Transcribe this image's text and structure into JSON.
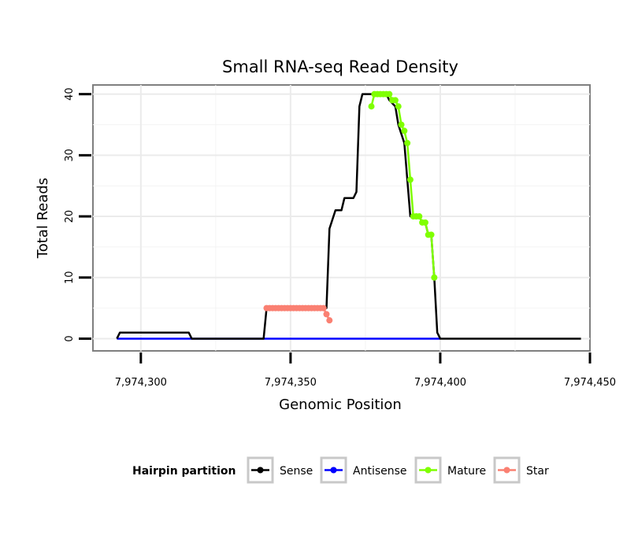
{
  "chart_data": {
    "type": "line",
    "title": "Small RNA-seq Read Density",
    "xlabel": "Genomic Position",
    "ylabel": "Total Reads",
    "xlim": [
      7974284,
      7974450
    ],
    "ylim": [
      -2,
      41.5
    ],
    "x_ticks": [
      7974300,
      7974350,
      7974400,
      7974450
    ],
    "x_tick_labels": [
      "7,974,300",
      "7,974,350",
      "7,974,400",
      "7,974,450"
    ],
    "y_ticks": [
      0,
      10,
      20,
      30,
      40
    ],
    "y_tick_labels": [
      "0",
      "10",
      "20",
      "30",
      "40"
    ],
    "grid": true,
    "legend": {
      "title": "Hairpin partition",
      "position": "bottom",
      "entries": [
        "Sense",
        "Antisense",
        "Mature",
        "Star"
      ]
    },
    "series": [
      {
        "name": "Sense",
        "color": "#000000",
        "markers": false,
        "points": [
          [
            7974292,
            0
          ],
          [
            7974293,
            1
          ],
          [
            7974316,
            1
          ],
          [
            7974317,
            0
          ],
          [
            7974341,
            0
          ],
          [
            7974342,
            5
          ],
          [
            7974362,
            5
          ],
          [
            7974363,
            18
          ],
          [
            7974365,
            21
          ],
          [
            7974367,
            21
          ],
          [
            7974368,
            23
          ],
          [
            7974371,
            23
          ],
          [
            7974372,
            24
          ],
          [
            7974373,
            38
          ],
          [
            7974374,
            40
          ],
          [
            7974382,
            40
          ],
          [
            7974383,
            39
          ],
          [
            7974385,
            38
          ],
          [
            7974386,
            35
          ],
          [
            7974388,
            32
          ],
          [
            7974389,
            26
          ],
          [
            7974390,
            20
          ],
          [
            7974393,
            20
          ],
          [
            7974394,
            19
          ],
          [
            7974395,
            19
          ],
          [
            7974396,
            17
          ],
          [
            7974397,
            17
          ],
          [
            7974398,
            10
          ],
          [
            7974399,
            1
          ],
          [
            7974400,
            0
          ],
          [
            7974447,
            0
          ]
        ]
      },
      {
        "name": "Antisense",
        "color": "#0000ff",
        "markers": false,
        "points": [
          [
            7974292,
            0
          ],
          [
            7974400,
            0
          ]
        ]
      },
      {
        "name": "Mature",
        "color": "#7fff00",
        "markers": true,
        "points": [
          [
            7974377,
            38
          ],
          [
            7974378,
            40
          ],
          [
            7974379,
            40
          ],
          [
            7974380,
            40
          ],
          [
            7974381,
            40
          ],
          [
            7974382,
            40
          ],
          [
            7974383,
            40
          ],
          [
            7974384,
            39
          ],
          [
            7974385,
            39
          ],
          [
            7974386,
            38
          ],
          [
            7974387,
            35
          ],
          [
            7974388,
            34
          ],
          [
            7974389,
            32
          ],
          [
            7974390,
            26
          ],
          [
            7974391,
            20
          ],
          [
            7974392,
            20
          ],
          [
            7974393,
            20
          ],
          [
            7974394,
            19
          ],
          [
            7974395,
            19
          ],
          [
            7974396,
            17
          ],
          [
            7974397,
            17
          ],
          [
            7974398,
            10
          ]
        ]
      },
      {
        "name": "Star",
        "color": "#fa8072",
        "markers": true,
        "points": [
          [
            7974342,
            5
          ],
          [
            7974343,
            5
          ],
          [
            7974344,
            5
          ],
          [
            7974345,
            5
          ],
          [
            7974346,
            5
          ],
          [
            7974347,
            5
          ],
          [
            7974348,
            5
          ],
          [
            7974349,
            5
          ],
          [
            7974350,
            5
          ],
          [
            7974351,
            5
          ],
          [
            7974352,
            5
          ],
          [
            7974353,
            5
          ],
          [
            7974354,
            5
          ],
          [
            7974355,
            5
          ],
          [
            7974356,
            5
          ],
          [
            7974357,
            5
          ],
          [
            7974358,
            5
          ],
          [
            7974359,
            5
          ],
          [
            7974360,
            5
          ],
          [
            7974361,
            5
          ],
          [
            7974362,
            4
          ],
          [
            7974363,
            3
          ]
        ]
      }
    ]
  }
}
